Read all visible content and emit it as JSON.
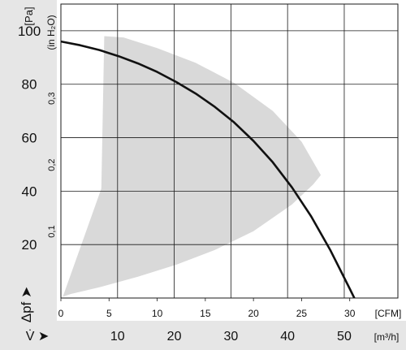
{
  "chart_data": {
    "type": "line",
    "title": "",
    "y_axis": {
      "unit_label": "[Pa]",
      "ticks": [
        20,
        40,
        60,
        80,
        100
      ],
      "range": [
        0,
        110
      ],
      "symbol": "Δpf ➤"
    },
    "y2_axis": {
      "unit_label": "(in H₂O)",
      "ticks": [
        0.1,
        0.2,
        0.3
      ],
      "tick_labels": [
        "0,1",
        "0,2",
        "0,3"
      ],
      "range_inH2O": [
        0,
        0.4418
      ]
    },
    "x_axis": {
      "unit_label": "[CFM]",
      "ticks": [
        0,
        5,
        10,
        15,
        20,
        25,
        30
      ],
      "range": [
        0,
        35
      ]
    },
    "x2_axis": {
      "unit_label": "[m³/h]",
      "ticks": [
        10,
        20,
        30,
        40,
        50
      ],
      "symbol": "V̇ ➤"
    },
    "grid": true,
    "series": [
      {
        "x": [
          0,
          2,
          4,
          6,
          8,
          10,
          12,
          14,
          16,
          18,
          20,
          22,
          24,
          26,
          28,
          30,
          31.5
        ],
        "y": [
          96,
          94.6,
          92.8,
          90.5,
          87.8,
          84.6,
          80.8,
          76.5,
          71.5,
          65.7,
          58.8,
          50.8,
          41.4,
          30.5,
          17.8,
          3.5,
          -7.5
        ]
      }
    ],
    "operating_area": {
      "x": [
        0.2,
        4.2,
        4.5,
        6.5,
        10,
        14,
        18,
        22,
        25,
        27,
        26.2,
        24,
        20,
        16,
        12,
        8,
        4,
        1
      ],
      "y": [
        0.5,
        41,
        98,
        97.5,
        93.5,
        88,
        80.5,
        70,
        58.5,
        46,
        42.5,
        35,
        25,
        18,
        12.5,
        8,
        4,
        1.5
      ]
    },
    "colors": {
      "curve": "#111111",
      "area": "#d9d9d9",
      "axis_band": "#e6e6e6",
      "grid": "#1a1a1a"
    }
  }
}
